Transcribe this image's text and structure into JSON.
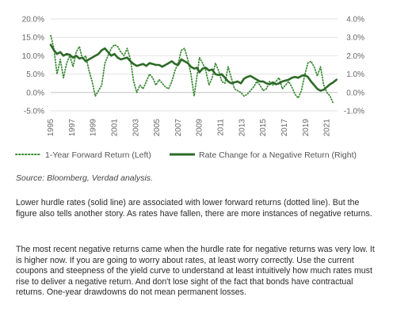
{
  "chart_data": {
    "type": "line",
    "left_axis": {
      "min": -5,
      "max": 20,
      "ticks": [
        "20.0%",
        "15.0%",
        "10.0%",
        "5.0%",
        "0.0%",
        "-5.0%"
      ]
    },
    "right_axis": {
      "min": -1,
      "max": 4,
      "ticks": [
        "4.0%",
        "3.0%",
        "2.0%",
        "1.0%",
        "0.0%",
        "-1.0%"
      ]
    },
    "x_ticks": [
      "1995",
      "1997",
      "1999",
      "2001",
      "2003",
      "2005",
      "2007",
      "2009",
      "2011",
      "2013",
      "2015",
      "2017",
      "2019",
      "2021"
    ],
    "x_range": [
      1995,
      2022
    ],
    "grid": "horizontal",
    "legend_position": "bottom",
    "series": [
      {
        "name": "1-Year Forward Return (Left)",
        "axis": "left",
        "style": "dotted",
        "color": "#3d8b37",
        "x": [
          1995.0,
          1995.3,
          1995.6,
          1995.9,
          1996.2,
          1996.5,
          1996.8,
          1997.1,
          1997.4,
          1997.7,
          1998.0,
          1998.3,
          1998.6,
          1998.9,
          1999.2,
          1999.5,
          1999.8,
          2000.1,
          2000.4,
          2000.7,
          2001.0,
          2001.3,
          2001.6,
          2001.9,
          2002.2,
          2002.5,
          2002.8,
          2003.1,
          2003.4,
          2003.7,
          2004.0,
          2004.3,
          2004.6,
          2004.9,
          2005.2,
          2005.5,
          2005.8,
          2006.1,
          2006.4,
          2006.7,
          2007.0,
          2007.3,
          2007.6,
          2007.9,
          2008.2,
          2008.5,
          2008.8,
          2009.0,
          2009.3,
          2009.6,
          2009.9,
          2010.2,
          2010.5,
          2010.8,
          2011.1,
          2011.4,
          2011.7,
          2012.0,
          2012.3,
          2012.6,
          2012.9,
          2013.2,
          2013.5,
          2013.8,
          2014.1,
          2014.4,
          2014.7,
          2015.0,
          2015.3,
          2015.6,
          2015.9,
          2016.2,
          2016.5,
          2016.8,
          2017.1,
          2017.4,
          2017.7,
          2018.0,
          2018.3,
          2018.6,
          2018.9,
          2019.2,
          2019.5,
          2019.8,
          2020.1,
          2020.4,
          2020.7,
          2021.0,
          2021.3,
          2021.6
        ],
        "y": [
          15.5,
          12.0,
          5.0,
          9.0,
          4.0,
          8.0,
          10.0,
          7.0,
          11.0,
          12.5,
          9.0,
          10.0,
          6.0,
          3.0,
          -1.0,
          0.5,
          2.0,
          8.0,
          10.0,
          12.0,
          13.0,
          12.5,
          11.0,
          10.0,
          12.0,
          9.0,
          3.0,
          0.0,
          2.0,
          1.0,
          3.0,
          5.0,
          4.0,
          2.0,
          3.5,
          2.5,
          1.5,
          1.0,
          3.0,
          6.0,
          8.0,
          11.5,
          12.0,
          9.0,
          5.0,
          -1.0,
          5.0,
          9.5,
          8.0,
          6.0,
          2.0,
          4.0,
          8.0,
          6.0,
          3.0,
          2.5,
          7.0,
          4.0,
          1.0,
          0.5,
          0.0,
          -1.0,
          -0.5,
          0.5,
          1.5,
          3.0,
          2.0,
          0.5,
          1.0,
          3.0,
          2.0,
          3.0,
          4.0,
          1.0,
          2.0,
          3.0,
          1.5,
          -0.5,
          -1.5,
          0.5,
          4.5,
          8.0,
          8.5,
          7.0,
          4.5,
          7.0,
          2.0,
          0.0,
          -1.0,
          -3.0
        ]
      },
      {
        "name": "Rate Change for a Negative Return (Right)",
        "axis": "right",
        "style": "solid",
        "color": "#2d6a27",
        "x": [
          1995.0,
          1995.3,
          1995.6,
          1995.9,
          1996.2,
          1996.5,
          1996.8,
          1997.1,
          1997.4,
          1997.7,
          1998.0,
          1998.3,
          1998.6,
          1998.9,
          1999.2,
          1999.5,
          1999.8,
          2000.1,
          2000.4,
          2000.7,
          2001.0,
          2001.3,
          2001.6,
          2001.9,
          2002.2,
          2002.5,
          2002.8,
          2003.1,
          2003.4,
          2003.7,
          2004.0,
          2004.3,
          2004.6,
          2004.9,
          2005.2,
          2005.5,
          2005.8,
          2006.1,
          2006.4,
          2006.7,
          2007.0,
          2007.3,
          2007.6,
          2007.9,
          2008.2,
          2008.5,
          2008.8,
          2009.0,
          2009.3,
          2009.6,
          2009.9,
          2010.2,
          2010.5,
          2010.8,
          2011.1,
          2011.4,
          2011.7,
          2012.0,
          2012.3,
          2012.6,
          2012.9,
          2013.2,
          2013.5,
          2013.8,
          2014.1,
          2014.4,
          2014.7,
          2015.0,
          2015.3,
          2015.6,
          2015.9,
          2016.2,
          2016.5,
          2016.8,
          2017.1,
          2017.4,
          2017.7,
          2018.0,
          2018.3,
          2018.6,
          2018.9,
          2019.2,
          2019.5,
          2019.8,
          2020.1,
          2020.4,
          2020.7,
          2021.0,
          2021.3,
          2021.6,
          2021.9
        ],
        "y": [
          2.6,
          2.3,
          2.1,
          2.2,
          2.0,
          2.1,
          2.05,
          1.9,
          2.0,
          1.85,
          1.9,
          1.7,
          1.8,
          1.9,
          2.0,
          2.1,
          2.3,
          2.4,
          2.2,
          2.0,
          2.1,
          1.9,
          1.8,
          1.85,
          1.9,
          1.7,
          1.55,
          1.45,
          1.5,
          1.55,
          1.45,
          1.6,
          1.55,
          1.5,
          1.5,
          1.4,
          1.5,
          1.6,
          1.7,
          1.55,
          1.5,
          1.8,
          1.7,
          1.6,
          1.4,
          1.3,
          1.35,
          1.1,
          1.3,
          1.35,
          1.2,
          1.25,
          1.0,
          0.95,
          1.0,
          0.8,
          0.6,
          0.5,
          0.55,
          0.6,
          0.5,
          0.75,
          0.85,
          0.9,
          0.8,
          0.7,
          0.6,
          0.6,
          0.5,
          0.45,
          0.55,
          0.45,
          0.5,
          0.6,
          0.65,
          0.7,
          0.8,
          0.85,
          0.8,
          0.9,
          0.95,
          0.85,
          0.6,
          0.4,
          0.2,
          0.1,
          0.15,
          0.3,
          0.45,
          0.55,
          0.7
        ]
      }
    ]
  },
  "source": "Source: Bloomberg, Verdad analysis.",
  "paragraphs": [
    "Lower hurdle rates (solid line) are associated with lower forward returns (dotted line). But the figure also tells another story. As rates have fallen, there are more instances of negative returns.",
    "The most recent negative returns came when the hurdle rate for negative returns was very low. It is higher now. If you are going to worry about rates, at least worry correctly. Use the current coupons and steepness of the yield curve to understand at least intuitively how much rates must rise to deliver a negative return. And don't lose sight of the fact that bonds have contractual returns. One-year drawdowns do not mean permanent losses."
  ]
}
